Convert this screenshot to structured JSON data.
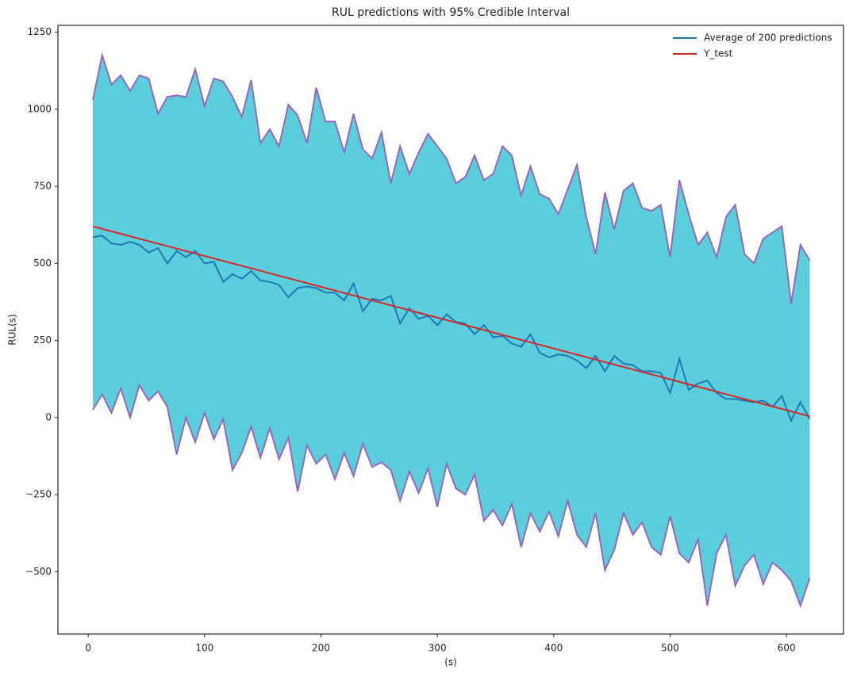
{
  "chart_data": {
    "type": "line",
    "title": "RUL predictions with 95% Credible Interval",
    "x_label": "(s)",
    "y_label": "RUL(s)",
    "x": [
      4,
      12,
      20,
      28,
      36,
      44,
      52,
      60,
      68,
      76,
      84,
      92,
      100,
      108,
      116,
      124,
      132,
      140,
      148,
      156,
      164,
      172,
      180,
      188,
      196,
      204,
      212,
      220,
      228,
      236,
      244,
      252,
      260,
      268,
      276,
      284,
      292,
      300,
      308,
      316,
      324,
      332,
      340,
      348,
      356,
      364,
      372,
      380,
      388,
      396,
      404,
      412,
      420,
      428,
      436,
      444,
      452,
      460,
      468,
      476,
      484,
      492,
      500,
      508,
      516,
      524,
      532,
      540,
      548,
      556,
      564,
      572,
      580,
      588,
      596,
      604,
      612,
      620
    ],
    "series": [
      {
        "name": "Average of 200 predictions",
        "color": "#1f77b4",
        "values": [
          585,
          590,
          565,
          560,
          570,
          560,
          535,
          550,
          500,
          540,
          520,
          540,
          500,
          505,
          440,
          465,
          450,
          475,
          445,
          440,
          430,
          390,
          420,
          425,
          420,
          405,
          405,
          380,
          435,
          345,
          385,
          380,
          395,
          305,
          355,
          320,
          330,
          300,
          335,
          310,
          305,
          270,
          300,
          260,
          265,
          240,
          230,
          270,
          210,
          195,
          205,
          200,
          185,
          160,
          200,
          150,
          200,
          175,
          170,
          150,
          150,
          145,
          80,
          190,
          90,
          110,
          120,
          80,
          60,
          60,
          55,
          50,
          55,
          35,
          70,
          -10,
          50,
          -5
        ]
      },
      {
        "name": "Y_test",
        "color": "#d62728",
        "values": [
          620,
          612,
          604,
          596,
          588,
          580,
          572,
          564,
          556,
          548,
          540,
          532,
          524,
          516,
          508,
          500,
          492,
          484,
          476,
          468,
          460,
          452,
          444,
          436,
          428,
          420,
          412,
          404,
          396,
          388,
          380,
          372,
          364,
          356,
          348,
          340,
          332,
          324,
          316,
          308,
          300,
          292,
          284,
          276,
          268,
          260,
          252,
          244,
          236,
          228,
          220,
          212,
          204,
          196,
          188,
          180,
          172,
          164,
          156,
          148,
          140,
          132,
          124,
          116,
          108,
          100,
          92,
          84,
          76,
          68,
          60,
          52,
          44,
          36,
          28,
          20,
          12,
          4
        ]
      }
    ],
    "interval": {
      "fill_color": "#5bcedb",
      "edge_color": "#9467bd",
      "upper": [
        1030,
        1175,
        1080,
        1110,
        1060,
        1110,
        1100,
        985,
        1040,
        1045,
        1040,
        1130,
        1010,
        1100,
        1090,
        1040,
        975,
        1095,
        890,
        935,
        880,
        1015,
        980,
        890,
        1070,
        960,
        960,
        860,
        985,
        870,
        840,
        925,
        760,
        880,
        790,
        860,
        920,
        880,
        840,
        760,
        780,
        850,
        770,
        790,
        880,
        850,
        720,
        815,
        725,
        710,
        660,
        740,
        820,
        650,
        530,
        730,
        610,
        735,
        760,
        680,
        670,
        690,
        520,
        770,
        660,
        560,
        600,
        520,
        650,
        690,
        530,
        500,
        580,
        600,
        620,
        370,
        560,
        510
      ],
      "lower": [
        25,
        75,
        15,
        95,
        0,
        105,
        55,
        85,
        35,
        -120,
        0,
        -80,
        15,
        -70,
        -5,
        -170,
        -115,
        -30,
        -130,
        -35,
        -135,
        -65,
        -240,
        -90,
        -150,
        -120,
        -200,
        -115,
        -190,
        -85,
        -160,
        -145,
        -170,
        -270,
        -175,
        -245,
        -165,
        -290,
        -150,
        -230,
        -250,
        -185,
        -335,
        -300,
        -350,
        -280,
        -420,
        -310,
        -370,
        -305,
        -385,
        -270,
        -380,
        -420,
        -310,
        -495,
        -430,
        -310,
        -380,
        -340,
        -420,
        -445,
        -320,
        -440,
        -470,
        -395,
        -610,
        -440,
        -380,
        -545,
        -480,
        -445,
        -540,
        -470,
        -495,
        -530,
        -610,
        -520
      ]
    },
    "xlim": [
      -26,
      649
    ],
    "ylim": [
      -702,
      1272
    ],
    "xticks": [
      0,
      100,
      200,
      300,
      400,
      500,
      600
    ],
    "yticks": [
      {
        "value": -500,
        "label": "−500"
      },
      {
        "value": -250,
        "label": "−250"
      },
      0,
      250,
      500,
      750,
      1000,
      1250
    ],
    "legend": "upper right",
    "grid": false
  }
}
